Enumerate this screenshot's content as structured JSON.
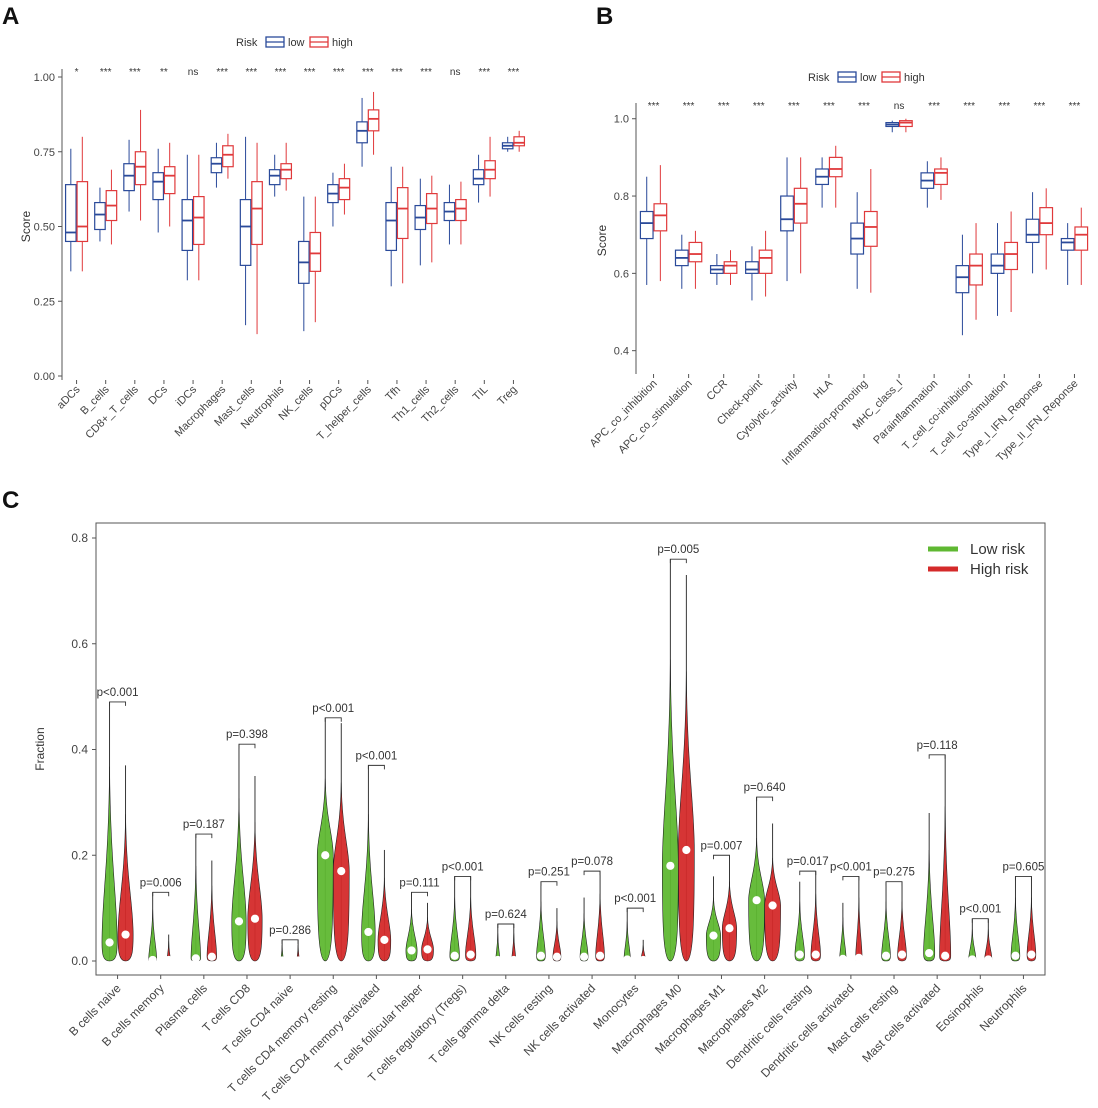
{
  "panels": {
    "a": "A",
    "b": "B",
    "c": "C"
  },
  "colors": {
    "low": "#2a4a9a",
    "high": "#e0393b",
    "low_risk": "#5fb832",
    "high_risk": "#d42a2a"
  },
  "chart_data": [
    {
      "type": "box",
      "panel": "A",
      "ylabel": "Score",
      "ylim": [
        0,
        1
      ],
      "yticks": [
        "0.00",
        "0.25",
        "0.50",
        "0.75",
        "1.00"
      ],
      "legend": {
        "title": "Risk",
        "low": "low",
        "high": "high"
      },
      "categories": [
        "aDCs",
        "B_cells",
        "CD8+_T_cells",
        "DCs",
        "iDCs",
        "Macrophages",
        "Mast_cells",
        "Neutrophils",
        "NK_cells",
        "pDCs",
        "T_helper_cells",
        "Tfh",
        "Th1_cells",
        "Th2_cells",
        "TIL",
        "Treg"
      ],
      "significance": [
        "*",
        "***",
        "***",
        "**",
        "ns",
        "***",
        "***",
        "***",
        "***",
        "***",
        "***",
        "***",
        "***",
        "ns",
        "***",
        "***"
      ],
      "series": [
        {
          "name": "low",
          "boxes": [
            [
              0.35,
              0.45,
              0.48,
              0.64,
              0.76
            ],
            [
              0.45,
              0.49,
              0.54,
              0.58,
              0.63
            ],
            [
              0.55,
              0.62,
              0.67,
              0.71,
              0.79
            ],
            [
              0.48,
              0.59,
              0.65,
              0.68,
              0.76
            ],
            [
              0.32,
              0.42,
              0.52,
              0.59,
              0.74
            ],
            [
              0.63,
              0.68,
              0.71,
              0.73,
              0.78
            ],
            [
              0.17,
              0.37,
              0.5,
              0.59,
              0.8
            ],
            [
              0.6,
              0.64,
              0.67,
              0.69,
              0.74
            ],
            [
              0.15,
              0.31,
              0.38,
              0.45,
              0.6
            ],
            [
              0.5,
              0.58,
              0.61,
              0.64,
              0.68
            ],
            [
              0.7,
              0.78,
              0.82,
              0.85,
              0.93
            ],
            [
              0.3,
              0.42,
              0.52,
              0.58,
              0.7
            ],
            [
              0.37,
              0.49,
              0.53,
              0.57,
              0.66
            ],
            [
              0.44,
              0.52,
              0.55,
              0.58,
              0.64
            ],
            [
              0.58,
              0.64,
              0.66,
              0.69,
              0.74
            ],
            [
              0.75,
              0.76,
              0.77,
              0.78,
              0.8
            ]
          ]
        },
        {
          "name": "high",
          "boxes": [
            [
              0.35,
              0.45,
              0.5,
              0.65,
              0.8
            ],
            [
              0.44,
              0.52,
              0.57,
              0.62,
              0.69
            ],
            [
              0.52,
              0.64,
              0.7,
              0.75,
              0.89
            ],
            [
              0.5,
              0.61,
              0.67,
              0.7,
              0.78
            ],
            [
              0.32,
              0.44,
              0.53,
              0.6,
              0.74
            ],
            [
              0.66,
              0.7,
              0.74,
              0.77,
              0.81
            ],
            [
              0.14,
              0.44,
              0.56,
              0.65,
              0.78
            ],
            [
              0.62,
              0.66,
              0.69,
              0.71,
              0.78
            ],
            [
              0.18,
              0.35,
              0.41,
              0.48,
              0.6
            ],
            [
              0.54,
              0.59,
              0.63,
              0.66,
              0.71
            ],
            [
              0.74,
              0.82,
              0.86,
              0.89,
              0.95
            ],
            [
              0.31,
              0.46,
              0.56,
              0.63,
              0.7
            ],
            [
              0.38,
              0.51,
              0.56,
              0.61,
              0.67
            ],
            [
              0.44,
              0.52,
              0.56,
              0.59,
              0.65
            ],
            [
              0.6,
              0.66,
              0.69,
              0.72,
              0.8
            ],
            [
              0.75,
              0.77,
              0.78,
              0.8,
              0.82
            ]
          ]
        }
      ]
    },
    {
      "type": "box",
      "panel": "B",
      "ylabel": "Score",
      "ylim": [
        0.35,
        1.02
      ],
      "yticks": [
        "0.4",
        "0.6",
        "0.8",
        "1.0"
      ],
      "legend": {
        "title": "Risk",
        "low": "low",
        "high": "high"
      },
      "categories": [
        "APC_co_inhibition",
        "APC_co_stimulation",
        "CCR",
        "Check-point",
        "Cytolytic_activity",
        "HLA",
        "Inflammation-promoting",
        "MHC_class_I",
        "Parainflammation",
        "T_cell_co-inhibition",
        "T_cell_co-stimulation",
        "Type_I_IFN_Reponse",
        "Type_II_IFN_Reponse"
      ],
      "significance": [
        "***",
        "***",
        "***",
        "***",
        "***",
        "***",
        "***",
        "ns",
        "***",
        "***",
        "***",
        "***",
        "***"
      ],
      "series": [
        {
          "name": "low",
          "boxes": [
            [
              0.57,
              0.69,
              0.73,
              0.76,
              0.85
            ],
            [
              0.56,
              0.62,
              0.64,
              0.66,
              0.7
            ],
            [
              0.57,
              0.6,
              0.61,
              0.62,
              0.65
            ],
            [
              0.53,
              0.6,
              0.61,
              0.63,
              0.67
            ],
            [
              0.58,
              0.71,
              0.74,
              0.8,
              0.9
            ],
            [
              0.77,
              0.83,
              0.85,
              0.87,
              0.9
            ],
            [
              0.56,
              0.65,
              0.69,
              0.73,
              0.81
            ],
            [
              0.965,
              0.98,
              0.985,
              0.99,
              0.995
            ],
            [
              0.77,
              0.82,
              0.84,
              0.86,
              0.89
            ],
            [
              0.44,
              0.55,
              0.59,
              0.62,
              0.7
            ],
            [
              0.49,
              0.6,
              0.62,
              0.65,
              0.73
            ],
            [
              0.6,
              0.68,
              0.7,
              0.74,
              0.81
            ],
            [
              0.57,
              0.66,
              0.68,
              0.69,
              0.73
            ]
          ]
        },
        {
          "name": "high",
          "boxes": [
            [
              0.58,
              0.71,
              0.75,
              0.78,
              0.88
            ],
            [
              0.56,
              0.63,
              0.65,
              0.68,
              0.71
            ],
            [
              0.57,
              0.6,
              0.62,
              0.63,
              0.66
            ],
            [
              0.54,
              0.6,
              0.64,
              0.66,
              0.71
            ],
            [
              0.6,
              0.73,
              0.78,
              0.82,
              0.9
            ],
            [
              0.77,
              0.85,
              0.87,
              0.9,
              0.93
            ],
            [
              0.55,
              0.67,
              0.72,
              0.76,
              0.87
            ],
            [
              0.965,
              0.98,
              0.99,
              0.995,
              1.0
            ],
            [
              0.79,
              0.83,
              0.86,
              0.87,
              0.9
            ],
            [
              0.48,
              0.57,
              0.62,
              0.65,
              0.73
            ],
            [
              0.5,
              0.61,
              0.65,
              0.68,
              0.76
            ],
            [
              0.61,
              0.7,
              0.73,
              0.77,
              0.82
            ],
            [
              0.57,
              0.66,
              0.7,
              0.72,
              0.77
            ]
          ]
        }
      ]
    },
    {
      "type": "violin",
      "panel": "C",
      "ylabel": "Fraction",
      "ylim": [
        0,
        0.8
      ],
      "yticks": [
        "0.0",
        "0.2",
        "0.4",
        "0.6",
        "0.8"
      ],
      "legend": [
        "Low risk",
        "High risk"
      ],
      "categories": [
        "B cells naive",
        "B cells memory",
        "Plasma cells",
        "T cells CD8",
        "T cells CD4 naive",
        "T cells CD4 memory resting",
        "T cells CD4 memory activated",
        "T cells follicular helper",
        "T cells regulatory (Tregs)",
        "T cells gamma delta",
        "NK cells resting",
        "NK cells activated",
        "Monocytes",
        "Macrophages M0",
        "Macrophages M1",
        "Macrophages M2",
        "Dendritic cells resting",
        "Dendritic cells activated",
        "Mast cells resting",
        "Mast cells activated",
        "Eosinophils",
        "Neutrophils"
      ],
      "pvalues": [
        "p<0.001",
        "p=0.006",
        "p=0.187",
        "p=0.398",
        "p=0.286",
        "p<0.001",
        "p<0.001",
        "p=0.111",
        "p<0.001",
        "p=0.624",
        "p=0.251",
        "p=0.078",
        "p<0.001",
        "p=0.005",
        "p=0.007",
        "p=0.640",
        "p=0.017",
        "p<0.001",
        "p=0.275",
        "p=0.118",
        "p<0.001",
        "p=0.605"
      ],
      "series": [
        {
          "name": "Low risk",
          "max": [
            0.49,
            0.13,
            0.24,
            0.41,
            0.04,
            0.46,
            0.37,
            0.13,
            0.16,
            0.07,
            0.15,
            0.12,
            0.1,
            0.76,
            0.16,
            0.31,
            0.15,
            0.11,
            0.15,
            0.28,
            0.08,
            0.16
          ],
          "median": [
            0.035,
            0.002,
            0.005,
            0.075,
            0.001,
            0.2,
            0.055,
            0.02,
            0.01,
            0.002,
            0.01,
            0.008,
            0.003,
            0.18,
            0.048,
            0.115,
            0.012,
            0.004,
            0.01,
            0.015,
            0.003,
            0.01
          ],
          "width": [
            0.95,
            0.5,
            0.6,
            0.9,
            0.15,
            1.0,
            0.85,
            0.7,
            0.6,
            0.25,
            0.55,
            0.5,
            0.4,
            1.0,
            0.9,
            1.0,
            0.6,
            0.4,
            0.55,
            0.7,
            0.45,
            0.55
          ]
        },
        {
          "name": "High risk",
          "max": [
            0.37,
            0.05,
            0.19,
            0.35,
            0.04,
            0.45,
            0.21,
            0.11,
            0.16,
            0.07,
            0.1,
            0.17,
            0.04,
            0.73,
            0.2,
            0.26,
            0.17,
            0.16,
            0.15,
            0.39,
            0.08,
            0.16
          ],
          "median": [
            0.05,
            0.002,
            0.008,
            0.08,
            0.001,
            0.17,
            0.04,
            0.022,
            0.012,
            0.002,
            0.008,
            0.01,
            0.002,
            0.21,
            0.062,
            0.105,
            0.012,
            0.006,
            0.012,
            0.01,
            0.003,
            0.012
          ],
          "width": [
            0.95,
            0.2,
            0.6,
            0.9,
            0.15,
            1.0,
            0.8,
            0.75,
            0.65,
            0.25,
            0.5,
            0.55,
            0.3,
            1.0,
            0.9,
            1.0,
            0.6,
            0.4,
            0.55,
            0.7,
            0.45,
            0.55
          ]
        }
      ]
    }
  ]
}
